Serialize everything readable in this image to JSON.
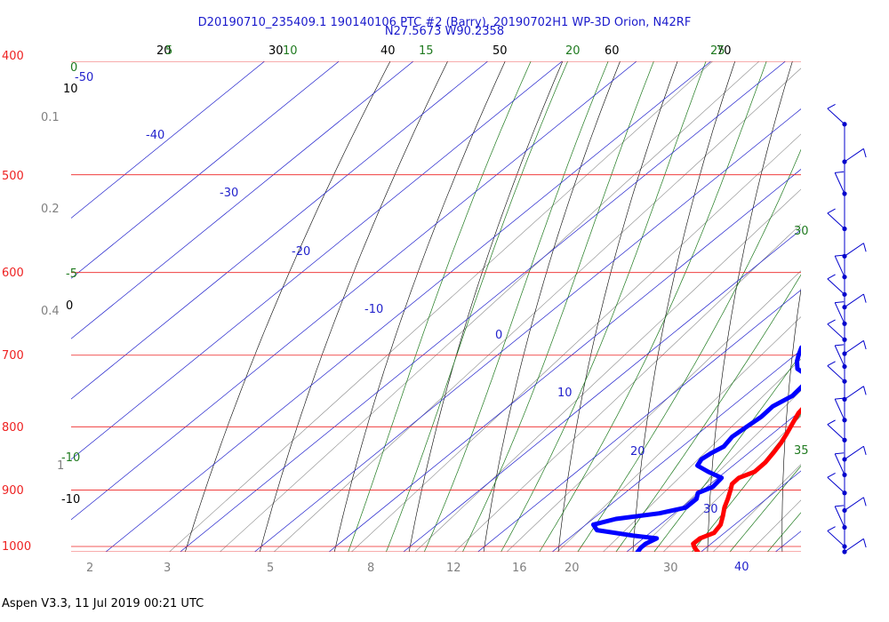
{
  "header": {
    "title_line1": "D20190710_235409.1 190140106 PTC #2 (Barry), 20190702H1 WP-3D Orion, N42RF",
    "title_line2": "N27.5673 W90.2358"
  },
  "footer": {
    "text": "Aspen V3.3, 11 Jul 2019  00:21 UTC"
  },
  "colors": {
    "isobar": "#ee2222",
    "isotherm": "#2222cc",
    "dry_adiabat": "#000000",
    "moist_adiabat": "#1f7a1f",
    "mixing_ratio": "#888888",
    "temperature": "#ff0000",
    "dewpoint": "#0000ff",
    "wind": "#0000cc"
  },
  "chart_data": {
    "type": "line",
    "subtype": "skew-T log-p diagram",
    "ylabel": "",
    "xlabel": "",
    "pressure_axis": {
      "ticks": [
        "400",
        "500",
        "600",
        "700",
        "800",
        "900",
        "1000"
      ],
      "scale": "log"
    },
    "isotherm_labels": [
      "-50",
      "-40",
      "-30",
      "-20",
      "-10",
      "0",
      "10",
      "20",
      "30",
      "40"
    ],
    "dry_adiabat_labels": [
      "20",
      "30",
      "40",
      "50",
      "60",
      "70",
      "10",
      "0",
      "-10"
    ],
    "moist_adiabat_labels": [
      "5",
      "10",
      "15",
      "20",
      "25",
      "30",
      "35",
      "0",
      "-5",
      "-10"
    ],
    "mixing_ratio_labels": [
      "0.1",
      "0.2",
      "0.4",
      "1",
      "2",
      "3",
      "5",
      "8",
      "12",
      "16",
      "20",
      "30",
      "40"
    ],
    "series": [
      {
        "key": "temperature",
        "points": [
          [
            1011,
            29.7
          ],
          [
            1002,
            28.4
          ],
          [
            995,
            27.6
          ],
          [
            985,
            27.6
          ],
          [
            975,
            28.6
          ],
          [
            960,
            28.1
          ],
          [
            945,
            27.0
          ],
          [
            930,
            25.8
          ],
          [
            915,
            24.8
          ],
          [
            900,
            23.7
          ],
          [
            890,
            22.9
          ],
          [
            880,
            22.8
          ],
          [
            870,
            23.9
          ],
          [
            855,
            23.8
          ],
          [
            840,
            23.3
          ],
          [
            825,
            22.7
          ],
          [
            810,
            21.9
          ],
          [
            795,
            21.0
          ],
          [
            780,
            20.1
          ],
          [
            770,
            19.8
          ],
          [
            760,
            19.6
          ],
          [
            745,
            18.9
          ],
          [
            735,
            18.3
          ],
          [
            725,
            17.6
          ],
          [
            715,
            17.5
          ],
          [
            705,
            17.4
          ],
          [
            700,
            17.2
          ],
          [
            690,
            16.1
          ],
          [
            680,
            15.2
          ],
          [
            670,
            15.0
          ],
          [
            660,
            14.2
          ],
          [
            645,
            13.4
          ],
          [
            635,
            13.0
          ],
          [
            620,
            12.1
          ],
          [
            610,
            11.3
          ],
          [
            600,
            10.2
          ],
          [
            590,
            9.2
          ],
          [
            575,
            8.5
          ],
          [
            560,
            7.4
          ],
          [
            550,
            6.5
          ],
          [
            545,
            5.6
          ],
          [
            535,
            4.4
          ],
          [
            528,
            3.5
          ],
          [
            520,
            3.3
          ],
          [
            510,
            2.6
          ],
          [
            500,
            1.8
          ],
          [
            490,
            1.3
          ],
          [
            480,
            0.2
          ],
          [
            470,
            -0.5
          ],
          [
            460,
            -1.2
          ],
          [
            451,
            -1.6
          ],
          [
            446,
            -1.0
          ]
        ]
      },
      {
        "key": "dewpoint",
        "points": [
          [
            1011,
            21.5
          ],
          [
            1002,
            21.2
          ],
          [
            995,
            21.2
          ],
          [
            985,
            21.8
          ],
          [
            980,
            18.2
          ],
          [
            970,
            12.4
          ],
          [
            960,
            11.0
          ],
          [
            950,
            13.1
          ],
          [
            940,
            18.0
          ],
          [
            930,
            20.6
          ],
          [
            915,
            20.6
          ],
          [
            905,
            19.8
          ],
          [
            895,
            20.8
          ],
          [
            880,
            20.5
          ],
          [
            870,
            17.7
          ],
          [
            860,
            15.2
          ],
          [
            850,
            14.7
          ],
          [
            840,
            15.0
          ],
          [
            830,
            15.6
          ],
          [
            815,
            15.1
          ],
          [
            800,
            15.4
          ],
          [
            785,
            15.7
          ],
          [
            770,
            15.5
          ],
          [
            755,
            16.4
          ],
          [
            740,
            16.1
          ],
          [
            725,
            14.5
          ],
          [
            718,
            12.6
          ],
          [
            708,
            11.3
          ],
          [
            700,
            10.5
          ],
          [
            690,
            9.6
          ],
          [
            680,
            10.0
          ],
          [
            670,
            9.2
          ],
          [
            660,
            8.7
          ],
          [
            650,
            8.7
          ],
          [
            640,
            8.2
          ],
          [
            630,
            7.7
          ],
          [
            620,
            7.5
          ],
          [
            612,
            7.0
          ],
          [
            605,
            5.7
          ],
          [
            598,
            4.4
          ],
          [
            590,
            4.0
          ],
          [
            580,
            3.5
          ],
          [
            568,
            2.5
          ],
          [
            555,
            1.4
          ],
          [
            546,
            0.6
          ],
          [
            538,
            -1.5
          ],
          [
            528,
            -3.3
          ],
          [
            518,
            -4.5
          ],
          [
            510,
            -5.4
          ],
          [
            500,
            -6.7
          ],
          [
            490,
            -8.3
          ],
          [
            480,
            -10.5
          ],
          [
            468,
            -12.7
          ],
          [
            457,
            -13.5
          ]
        ]
      }
    ],
    "wind_barbs_pressure": [
      455,
      488,
      518,
      553,
      582,
      605,
      625,
      640,
      660,
      680,
      698,
      715,
      735,
      760,
      790,
      820,
      850,
      875,
      905,
      935,
      965,
      1000,
      1010
    ]
  }
}
